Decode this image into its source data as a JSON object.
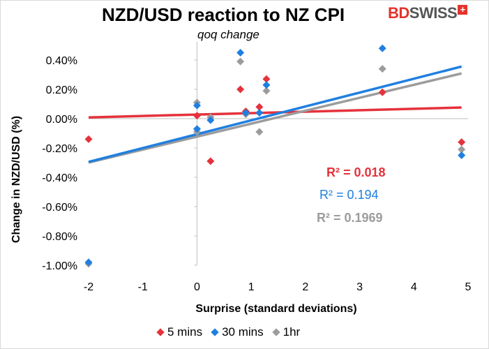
{
  "title": "NZD/USD reaction to NZ CPI",
  "subtitle": "qoq change",
  "logo": {
    "brand_part1": "BD",
    "brand_part2": "SWISS",
    "mark": "+"
  },
  "chart_data": {
    "type": "scatter",
    "title": "NZD/USD reaction to NZ CPI",
    "subtitle": "qoq change",
    "xlabel": "Surprise (standard deviations)",
    "ylabel": "Change in NZD/USD   (%)",
    "xlim": [
      -2,
      5
    ],
    "ylim": [
      -1.0,
      0.5
    ],
    "x_ticks": [
      "-2",
      "-1",
      "0",
      "1",
      "2",
      "3",
      "4",
      "5"
    ],
    "y_ticks": [
      "-1.00%",
      "-0.80%",
      "-0.60%",
      "-0.40%",
      "-0.20%",
      "0.00%",
      "0.20%",
      "0.40%"
    ],
    "x_tick_values": [
      -2,
      -1,
      0,
      1,
      2,
      3,
      4,
      5
    ],
    "y_tick_values": [
      -1.0,
      -0.8,
      -0.6,
      -0.4,
      -0.2,
      0.0,
      0.2,
      0.4
    ],
    "grid": false,
    "legend_position": "bottom",
    "series": [
      {
        "name": "5 mins",
        "color": "#e5323c",
        "points": [
          [
            -2.0,
            -0.14
          ],
          [
            0.0,
            0.02
          ],
          [
            0.25,
            -0.29
          ],
          [
            0.8,
            0.2
          ],
          [
            0.9,
            0.05
          ],
          [
            1.15,
            0.08
          ],
          [
            1.28,
            0.27
          ],
          [
            3.42,
            0.18
          ],
          [
            4.88,
            -0.16
          ]
        ],
        "trend": {
          "slope": 0.0098,
          "intercept": 0.0282,
          "r2_label": "R² = 0.018"
        }
      },
      {
        "name": "30 mins",
        "color": "#1f7fe0",
        "points": [
          [
            -2.0,
            -0.98
          ],
          [
            0.0,
            0.09
          ],
          [
            0.0,
            -0.07
          ],
          [
            0.25,
            -0.01
          ],
          [
            0.8,
            0.45
          ],
          [
            0.9,
            0.04
          ],
          [
            1.15,
            0.04
          ],
          [
            1.28,
            0.23
          ],
          [
            3.42,
            0.48
          ],
          [
            4.88,
            -0.25
          ]
        ],
        "trend": {
          "slope": 0.0946,
          "intercept": -0.106,
          "r2_label": "R² = 0.194"
        }
      },
      {
        "name": "1hr",
        "color": "#9c9c9c",
        "points": [
          [
            -2.0,
            -0.99
          ],
          [
            0.0,
            0.11
          ],
          [
            0.0,
            -0.09
          ],
          [
            0.25,
            0.01
          ],
          [
            0.8,
            0.39
          ],
          [
            0.9,
            0.03
          ],
          [
            1.15,
            -0.09
          ],
          [
            1.28,
            0.19
          ],
          [
            3.42,
            0.34
          ],
          [
            4.88,
            -0.21
          ]
        ],
        "trend": {
          "slope": 0.0884,
          "intercept": -0.1226,
          "r2_label": "R² = 0.1969"
        }
      }
    ]
  }
}
